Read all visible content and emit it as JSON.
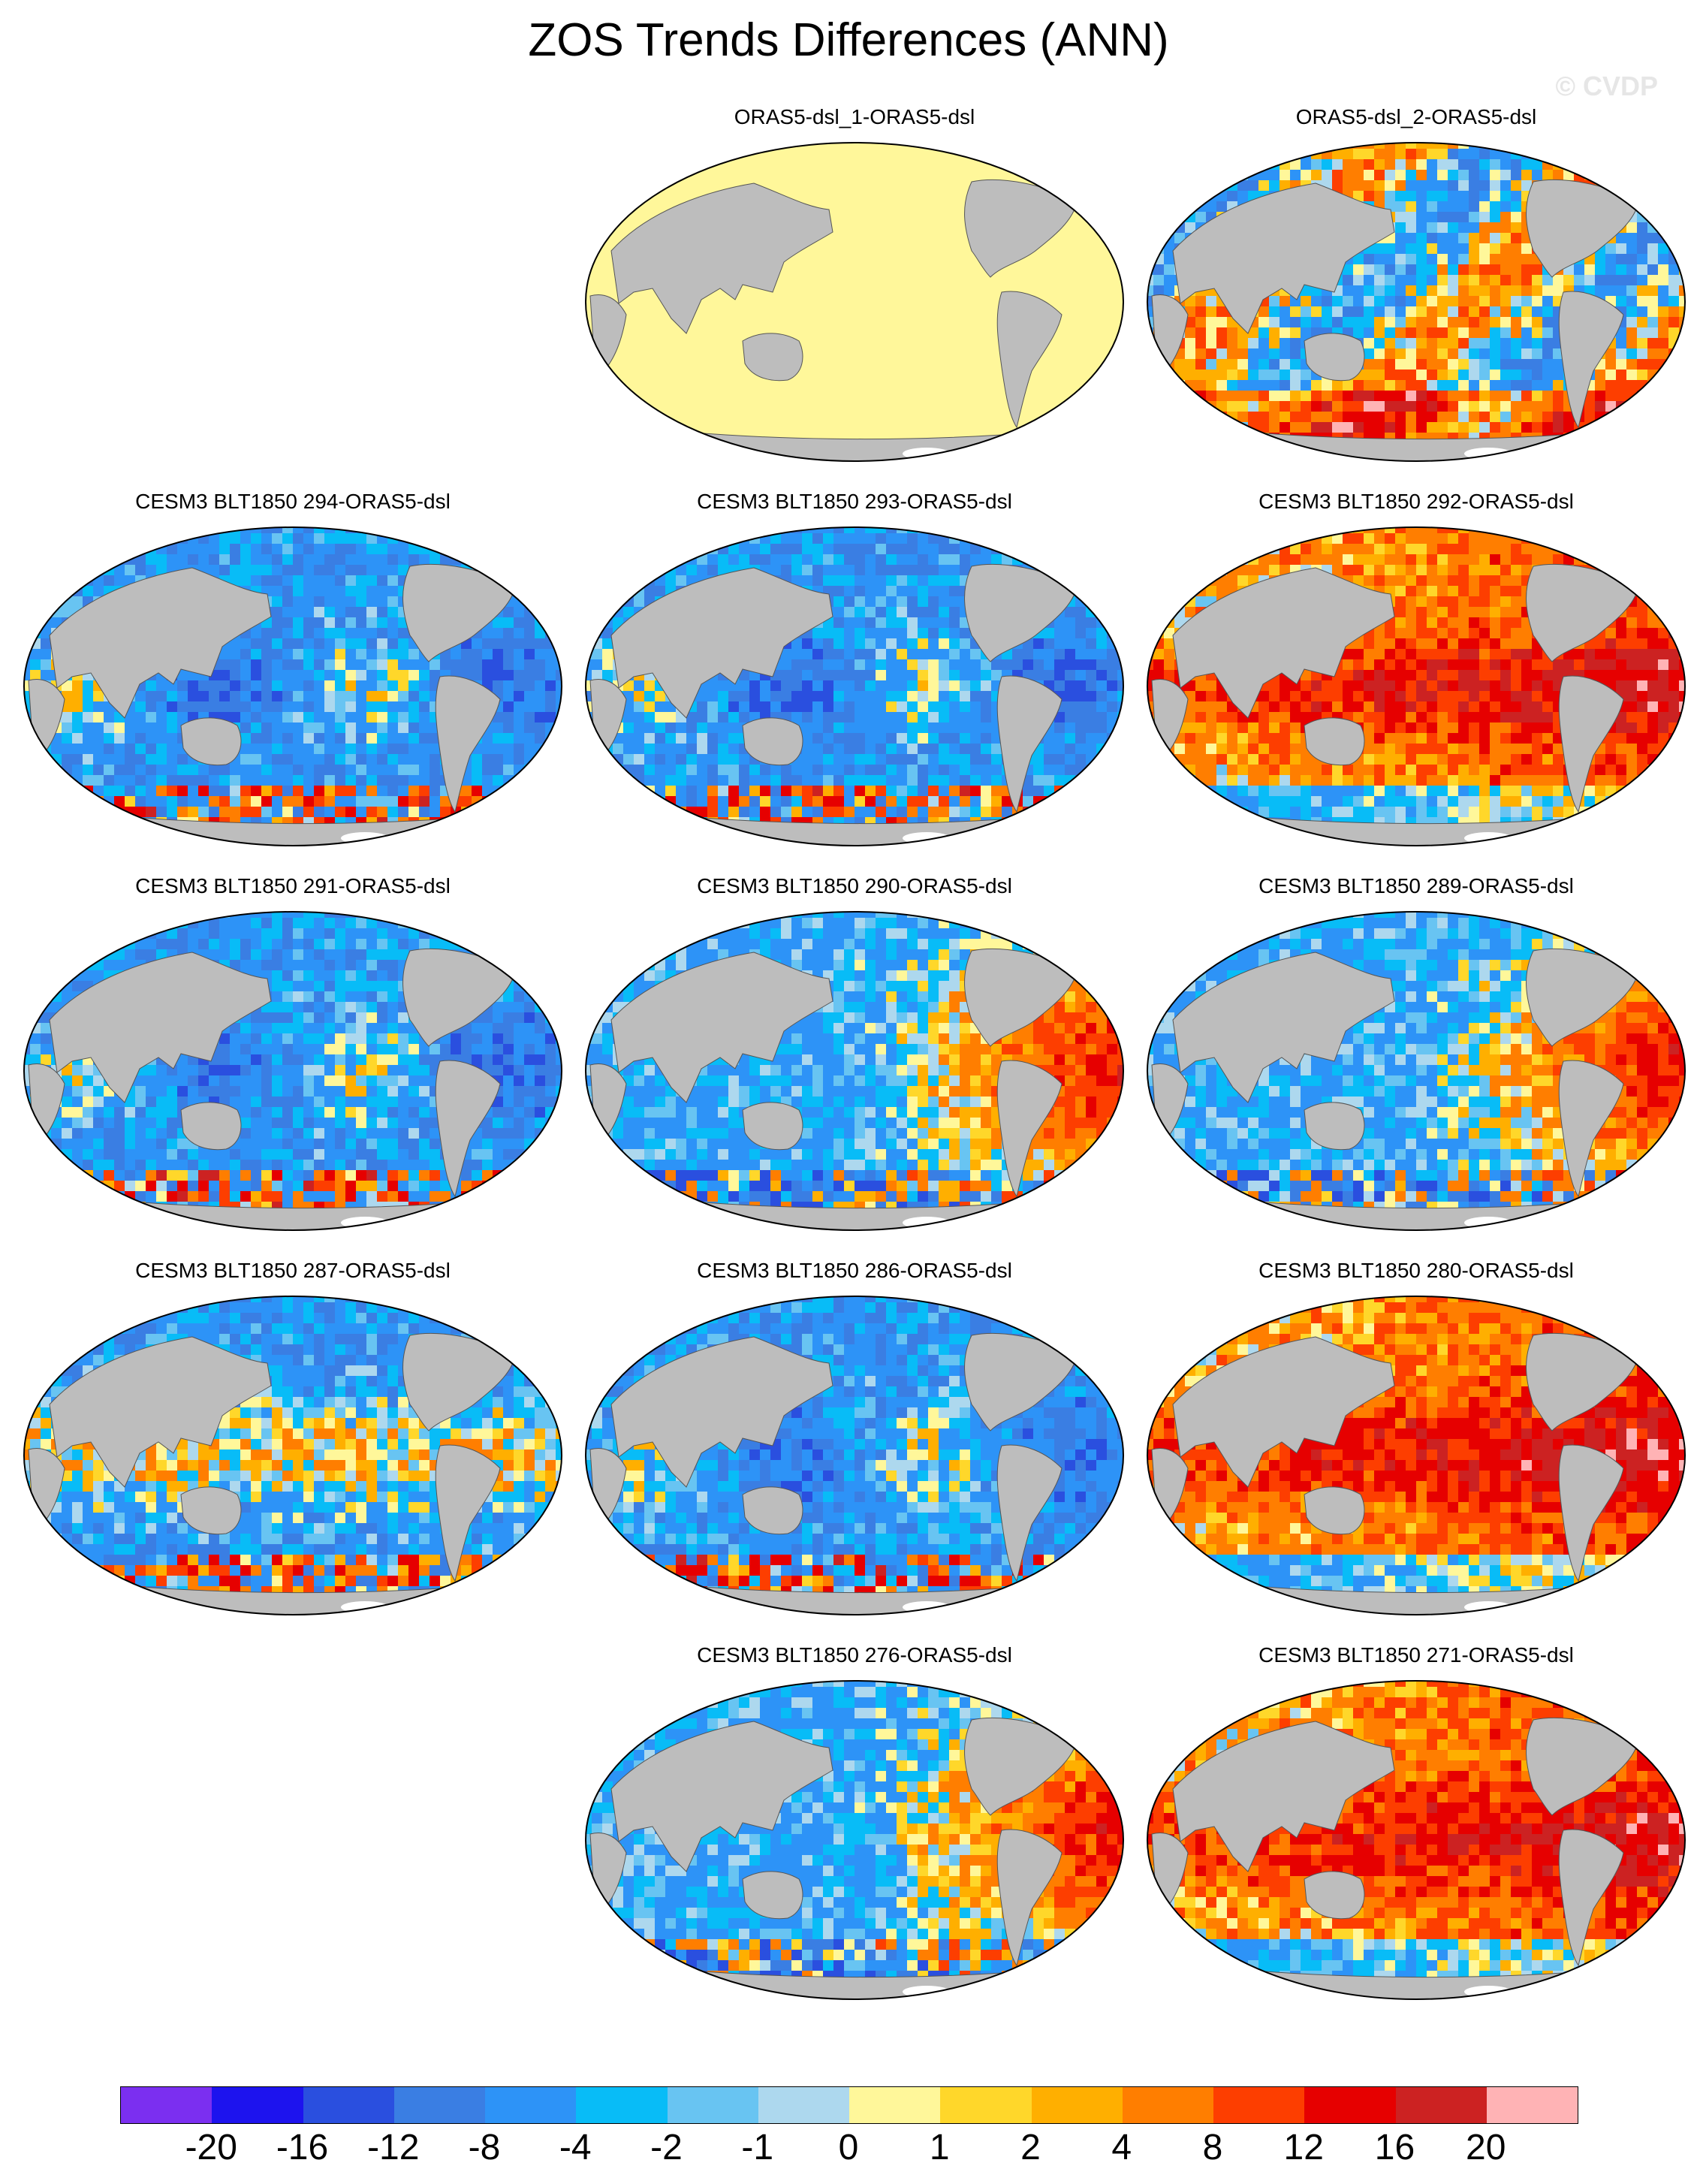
{
  "title": "ZOS Trends Differences (ANN)",
  "watermark": "© CVDP",
  "panels": [
    {
      "label": "ORAS5-dsl_1-ORAS5-dsl",
      "pattern": "uniform"
    },
    {
      "label": "ORAS5-dsl_2-ORAS5-dsl",
      "pattern": "mixed"
    },
    {
      "label": "CESM3 BLT1850 294-ORAS5-dsl",
      "pattern": "cool"
    },
    {
      "label": "CESM3 BLT1850 293-ORAS5-dsl",
      "pattern": "cool"
    },
    {
      "label": "CESM3 BLT1850 292-ORAS5-dsl",
      "pattern": "warm"
    },
    {
      "label": "CESM3 BLT1850 291-ORAS5-dsl",
      "pattern": "cool"
    },
    {
      "label": "CESM3 BLT1850 290-ORAS5-dsl",
      "pattern": "east-warm"
    },
    {
      "label": "CESM3 BLT1850 289-ORAS5-dsl",
      "pattern": "east-warm"
    },
    {
      "label": "CESM3 BLT1850 287-ORAS5-dsl",
      "pattern": "cool-band"
    },
    {
      "label": "CESM3 BLT1850 286-ORAS5-dsl",
      "pattern": "cool"
    },
    {
      "label": "CESM3 BLT1850 280-ORAS5-dsl",
      "pattern": "warm"
    },
    {
      "label": "CESM3 BLT1850 276-ORAS5-dsl",
      "pattern": "east-warm"
    },
    {
      "label": "CESM3 BLT1850 271-ORAS5-dsl",
      "pattern": "warm"
    }
  ],
  "colorbar": {
    "colors": [
      "#7b2ff0",
      "#1d13ee",
      "#2a4fdf",
      "#3a7ee3",
      "#2d93f7",
      "#08bcf7",
      "#68c4f2",
      "#add8ee",
      "#fff79a",
      "#ffd72a",
      "#ffaf00",
      "#ff7e00",
      "#fd3e00",
      "#e60000",
      "#cc2222",
      "#ffb3b5"
    ],
    "labels": [
      "-20",
      "-16",
      "-12",
      "-8",
      "-4",
      "-2",
      "-1",
      "0",
      "1",
      "2",
      "4",
      "8",
      "12",
      "16",
      "20"
    ]
  },
  "map_colors": {
    "land": "#bdbdbd",
    "uniform_ocean": "#fff79a",
    "antarctic_ice": "#ffffff"
  }
}
